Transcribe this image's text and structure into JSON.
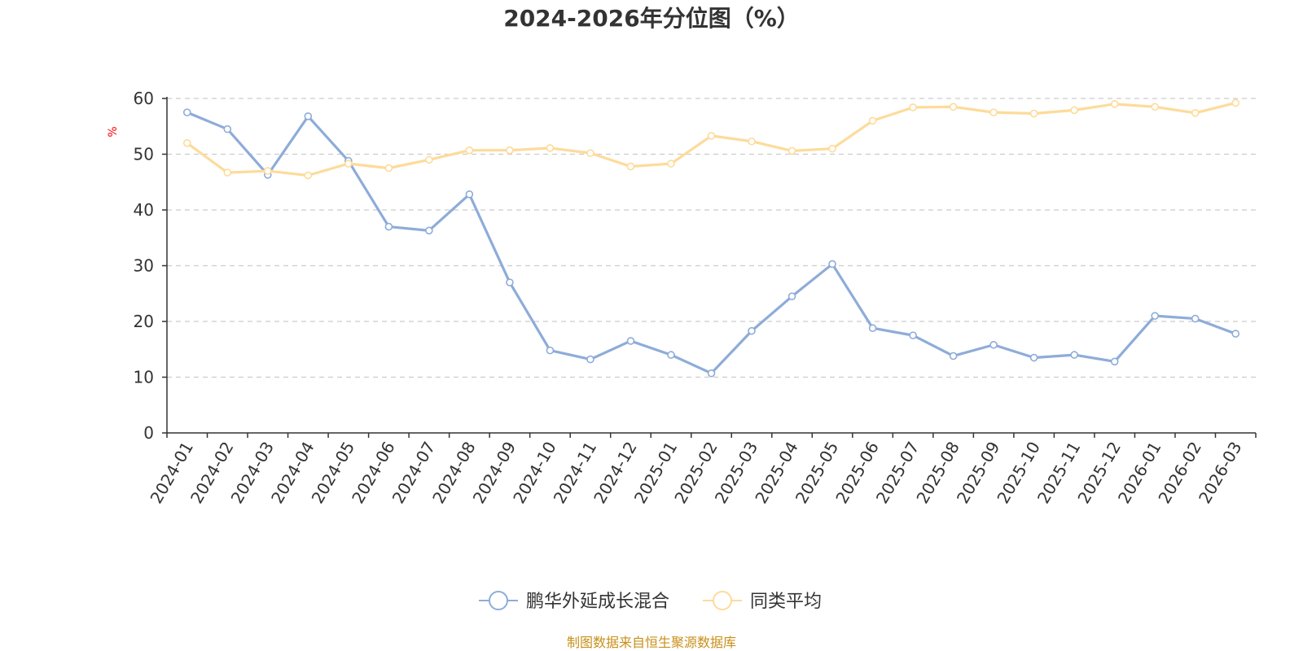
{
  "chart_data": {
    "type": "line",
    "title": "2024-2026年分位图（%）",
    "ylabel": "%",
    "xlabel": "",
    "ylim": [
      0,
      60
    ],
    "yticks": [
      0,
      10,
      20,
      30,
      40,
      50,
      60
    ],
    "grid": true,
    "legend_position": "bottom-center",
    "categories": [
      "2024-01",
      "2024-02",
      "2024-03",
      "2024-04",
      "2024-05",
      "2024-06",
      "2024-07",
      "2024-08",
      "2024-09",
      "2024-10",
      "2024-11",
      "2024-12",
      "2025-01",
      "2025-02",
      "2025-03",
      "2025-04",
      "2025-05",
      "2025-06",
      "2025-07",
      "2025-08",
      "2025-09",
      "2025-10",
      "2025-11",
      "2025-12",
      "2026-01",
      "2026-02",
      "2026-03"
    ],
    "series": [
      {
        "name": "鹏华外延成长混合",
        "color": "#8eacd9",
        "values": [
          57.5,
          54.5,
          46.3,
          56.8,
          48.8,
          37.0,
          36.3,
          42.8,
          27.0,
          14.8,
          13.2,
          16.5,
          14.0,
          10.7,
          18.3,
          24.5,
          30.3,
          18.8,
          17.5,
          13.8,
          15.8,
          13.5,
          14.0,
          12.8,
          21.0,
          20.5,
          17.8
        ]
      },
      {
        "name": "同类平均",
        "color": "#fddb9a",
        "values": [
          52.0,
          46.7,
          47.0,
          46.2,
          48.3,
          47.5,
          49.0,
          50.7,
          50.7,
          51.1,
          50.2,
          47.8,
          48.3,
          53.3,
          52.3,
          50.6,
          51.0,
          56.0,
          58.4,
          58.5,
          57.5,
          57.3,
          57.9,
          59.0,
          58.5,
          57.4,
          59.2
        ]
      }
    ],
    "source": "制图数据来自恒生聚源数据库"
  },
  "colors": {
    "axis": "#333333",
    "grid": "#cccccc",
    "unit": "#ff0000",
    "source": "#c8901a"
  }
}
